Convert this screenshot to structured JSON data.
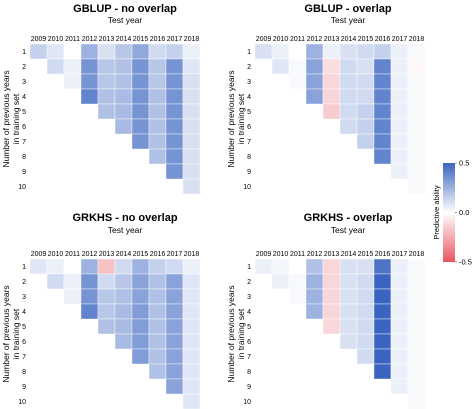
{
  "chart_data": [
    {
      "type": "heatmap",
      "title": "GBLUP - no overlap",
      "xlabel": "Test year",
      "ylabel": "Number of previous years in training set",
      "x": [
        "2009",
        "2010",
        "2011",
        "2012",
        "2013",
        "2014",
        "2015",
        "2016",
        "2017",
        "2018"
      ],
      "y": [
        "1",
        "2",
        "3",
        "4",
        "5",
        "6",
        "7",
        "8",
        "9",
        "10"
      ],
      "values": [
        [
          0.15,
          0.08,
          0.0,
          0.25,
          0.1,
          0.18,
          0.28,
          0.12,
          0.15,
          0.05
        ],
        [
          null,
          0.12,
          0.05,
          0.35,
          0.18,
          0.2,
          0.35,
          0.18,
          0.35,
          0.08
        ],
        [
          null,
          null,
          0.05,
          0.35,
          0.18,
          0.2,
          0.35,
          0.18,
          0.35,
          0.1
        ],
        [
          null,
          null,
          null,
          0.4,
          0.2,
          0.22,
          0.35,
          0.2,
          0.35,
          0.1
        ],
        [
          null,
          null,
          null,
          null,
          0.2,
          0.22,
          0.35,
          0.2,
          0.35,
          0.1
        ],
        [
          null,
          null,
          null,
          null,
          null,
          0.22,
          0.35,
          0.2,
          0.35,
          0.1
        ],
        [
          null,
          null,
          null,
          null,
          null,
          null,
          0.35,
          0.2,
          0.35,
          0.1
        ],
        [
          null,
          null,
          null,
          null,
          null,
          null,
          null,
          0.2,
          0.35,
          0.1
        ],
        [
          null,
          null,
          null,
          null,
          null,
          null,
          null,
          null,
          0.35,
          0.1
        ],
        [
          null,
          null,
          null,
          null,
          null,
          null,
          null,
          null,
          null,
          0.1
        ]
      ]
    },
    {
      "type": "heatmap",
      "title": "GBLUP - overlap",
      "xlabel": "Test year",
      "ylabel": "Number of previous years in training set",
      "x": [
        "2009",
        "2010",
        "2011",
        "2012",
        "2013",
        "2014",
        "2015",
        "2016",
        "2017",
        "2018"
      ],
      "y": [
        "1",
        "2",
        "3",
        "4",
        "5",
        "6",
        "7",
        "8",
        "9",
        "10"
      ],
      "values": [
        [
          0.1,
          0.05,
          0.0,
          0.25,
          0.05,
          0.1,
          0.12,
          0.15,
          0.05,
          0.02
        ],
        [
          null,
          0.08,
          0.02,
          0.3,
          -0.1,
          0.12,
          0.1,
          0.4,
          0.05,
          -0.02
        ],
        [
          null,
          null,
          0.02,
          0.3,
          -0.12,
          0.12,
          0.12,
          0.4,
          0.05,
          0.02
        ],
        [
          null,
          null,
          null,
          0.3,
          -0.12,
          0.12,
          0.12,
          0.4,
          0.05,
          0.02
        ],
        [
          null,
          null,
          null,
          null,
          -0.15,
          0.12,
          0.15,
          0.4,
          0.05,
          0.02
        ],
        [
          null,
          null,
          null,
          null,
          null,
          0.12,
          0.15,
          0.4,
          0.05,
          0.02
        ],
        [
          null,
          null,
          null,
          null,
          null,
          null,
          0.15,
          0.4,
          0.05,
          0.02
        ],
        [
          null,
          null,
          null,
          null,
          null,
          null,
          null,
          0.4,
          0.05,
          0.02
        ],
        [
          null,
          null,
          null,
          null,
          null,
          null,
          null,
          null,
          0.05,
          0.02
        ],
        [
          null,
          null,
          null,
          null,
          null,
          null,
          null,
          null,
          null,
          0.02
        ]
      ]
    },
    {
      "type": "heatmap",
      "title": "GRKHS - no overlap",
      "xlabel": "Test year",
      "ylabel": "Number of previous years in training set",
      "x": [
        "2009",
        "2010",
        "2011",
        "2012",
        "2013",
        "2014",
        "2015",
        "2016",
        "2017",
        "2018"
      ],
      "y": [
        "1",
        "2",
        "3",
        "4",
        "5",
        "6",
        "7",
        "8",
        "9",
        "10"
      ],
      "values": [
        [
          0.08,
          0.05,
          0.0,
          0.25,
          -0.18,
          0.12,
          0.25,
          0.15,
          0.12,
          0.05
        ],
        [
          null,
          0.12,
          0.05,
          0.35,
          0.12,
          0.18,
          0.3,
          0.2,
          0.3,
          0.08
        ],
        [
          null,
          null,
          0.05,
          0.35,
          0.18,
          0.2,
          0.3,
          0.2,
          0.3,
          0.08
        ],
        [
          null,
          null,
          null,
          0.4,
          0.18,
          0.22,
          0.32,
          0.2,
          0.3,
          0.08
        ],
        [
          null,
          null,
          null,
          null,
          0.2,
          0.22,
          0.32,
          0.2,
          0.3,
          0.08
        ],
        [
          null,
          null,
          null,
          null,
          null,
          0.22,
          0.32,
          0.2,
          0.3,
          0.08
        ],
        [
          null,
          null,
          null,
          null,
          null,
          null,
          0.32,
          0.2,
          0.3,
          0.08
        ],
        [
          null,
          null,
          null,
          null,
          null,
          null,
          null,
          0.2,
          0.3,
          0.08
        ],
        [
          null,
          null,
          null,
          null,
          null,
          null,
          null,
          null,
          0.3,
          0.08
        ],
        [
          null,
          null,
          null,
          null,
          null,
          null,
          null,
          null,
          null,
          0.08
        ]
      ]
    },
    {
      "type": "heatmap",
      "title": "GRKHS - overlap",
      "xlabel": "Test year",
      "ylabel": "Number of previous years in training set",
      "x": [
        "2009",
        "2010",
        "2011",
        "2012",
        "2013",
        "2014",
        "2015",
        "2016",
        "2017",
        "2018"
      ],
      "y": [
        "1",
        "2",
        "3",
        "4",
        "5",
        "6",
        "7",
        "8",
        "9",
        "10"
      ],
      "values": [
        [
          0.05,
          0.03,
          0.0,
          0.2,
          -0.12,
          0.1,
          0.1,
          0.45,
          0.05,
          0.02
        ],
        [
          null,
          0.05,
          0.02,
          0.25,
          -0.12,
          0.1,
          0.12,
          0.5,
          0.05,
          0.02
        ],
        [
          null,
          null,
          0.02,
          0.25,
          -0.12,
          0.1,
          0.12,
          0.5,
          0.05,
          0.02
        ],
        [
          null,
          null,
          null,
          0.25,
          -0.12,
          0.1,
          0.12,
          0.5,
          0.05,
          0.02
        ],
        [
          null,
          null,
          null,
          null,
          -0.12,
          0.1,
          0.12,
          0.5,
          0.05,
          0.02
        ],
        [
          null,
          null,
          null,
          null,
          null,
          0.1,
          0.12,
          0.5,
          0.05,
          0.02
        ],
        [
          null,
          null,
          null,
          null,
          null,
          null,
          0.12,
          0.5,
          0.05,
          0.02
        ],
        [
          null,
          null,
          null,
          null,
          null,
          null,
          null,
          0.5,
          0.05,
          0.02
        ],
        [
          null,
          null,
          null,
          null,
          null,
          null,
          null,
          null,
          0.05,
          0.02
        ],
        [
          null,
          null,
          null,
          null,
          null,
          null,
          null,
          null,
          null,
          0.02
        ]
      ]
    }
  ],
  "legend": {
    "title": "Predictive ability",
    "ticks": [
      "0.5",
      "0.0",
      "-0.5"
    ],
    "range": [
      -0.5,
      0.5
    ],
    "low_color": "#e8555f",
    "mid_color": "#ffffff",
    "high_color": "#3b64c0"
  }
}
